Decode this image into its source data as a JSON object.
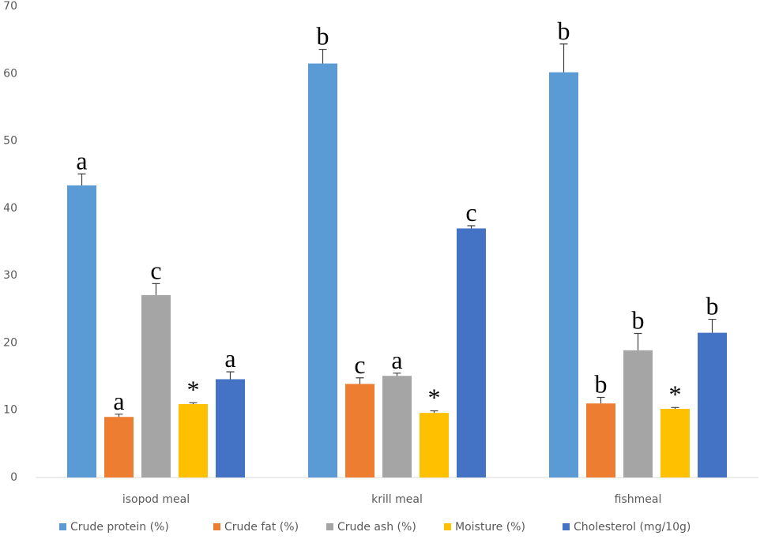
{
  "chart_data": {
    "type": "bar",
    "categories": [
      "isopod meal",
      "krill meal",
      "fishmeal"
    ],
    "series": [
      {
        "name": "Crude protein (%)",
        "color": "#5b9bd5",
        "values": [
          43.4,
          61.5,
          60.2
        ],
        "errors": [
          1.7,
          2.1,
          4.2
        ],
        "labels": [
          "a",
          "b",
          "b"
        ]
      },
      {
        "name": "Crude fat (%)",
        "color": "#ed7d31",
        "values": [
          9.0,
          13.9,
          11.0
        ],
        "errors": [
          0.4,
          0.9,
          0.9
        ],
        "labels": [
          "a",
          "c",
          "b"
        ]
      },
      {
        "name": "Crude ash (%)",
        "color": "#a5a5a5",
        "values": [
          27.1,
          15.1,
          18.9
        ],
        "errors": [
          1.7,
          0.4,
          2.5
        ],
        "labels": [
          "c",
          "a",
          "b"
        ]
      },
      {
        "name": "Moisture (%)",
        "color": "#ffc000",
        "values": [
          10.9,
          9.6,
          10.2
        ],
        "errors": [
          0.2,
          0.3,
          0.2
        ],
        "labels": [
          "*",
          "*",
          "*"
        ]
      },
      {
        "name": "Cholesterol (mg/10g)",
        "color": "#4472c4",
        "values": [
          14.6,
          37.0,
          21.5
        ],
        "errors": [
          1.1,
          0.4,
          2.0
        ],
        "labels": [
          "a",
          "c",
          "b"
        ]
      }
    ],
    "ylim": [
      0,
      70
    ],
    "yticks": [
      0,
      10,
      20,
      30,
      40,
      50,
      60,
      70
    ],
    "grid": false,
    "legend": "bottom"
  }
}
